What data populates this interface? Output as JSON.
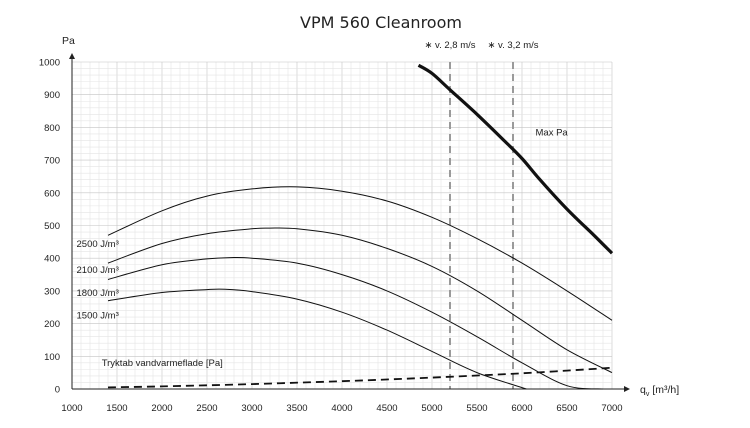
{
  "chart_data": {
    "type": "line",
    "title": "VPM 560 Cleanroom",
    "ylabel": "Pa",
    "xlabel": "q_v [m³/h]",
    "xlabel_main": "q",
    "xlabel_sub": "v",
    "xlabel_unit": "[m³/h]",
    "xlim": [
      1000,
      7000
    ],
    "ylim": [
      0,
      1000
    ],
    "x_ticks": [
      1000,
      1500,
      2000,
      2500,
      3000,
      3500,
      4000,
      4500,
      5000,
      5500,
      6000,
      6500,
      7000
    ],
    "y_ticks": [
      0,
      100,
      200,
      300,
      400,
      500,
      600,
      700,
      800,
      900,
      1000
    ],
    "grid": true,
    "velocity_markers": [
      {
        "label": "∗ v. 2,8 m/s",
        "x": 5200
      },
      {
        "label": "∗ v. 3,2 m/s",
        "x": 5900
      }
    ],
    "series": [
      {
        "name": "Max Pa",
        "style": "thick",
        "x": [
          4850,
          5000,
          5200,
          5500,
          5800,
          6000,
          6200,
          6500,
          6800,
          7000
        ],
        "y": [
          990,
          965,
          915,
          840,
          760,
          705,
          640,
          550,
          470,
          415
        ]
      },
      {
        "name": "2500 J/m³",
        "style": "thin",
        "x": [
          1400,
          2000,
          2500,
          3000,
          3500,
          4000,
          4500,
          5000,
          5500,
          6000,
          6500,
          7000
        ],
        "y": [
          470,
          545,
          590,
          612,
          618,
          605,
          575,
          525,
          460,
          385,
          300,
          210
        ]
      },
      {
        "name": "2100 J/m³",
        "style": "thin",
        "x": [
          1400,
          2000,
          2500,
          3000,
          3200,
          3500,
          4000,
          4500,
          5000,
          5500,
          6000,
          6500,
          7000
        ],
        "y": [
          385,
          445,
          475,
          490,
          492,
          490,
          470,
          430,
          375,
          300,
          210,
          120,
          50
        ]
      },
      {
        "name": "1800 J/m³",
        "style": "thin",
        "x": [
          1400,
          2000,
          2500,
          2800,
          3000,
          3500,
          4000,
          4500,
          5000,
          5500,
          6000,
          6500,
          6900
        ],
        "y": [
          335,
          380,
          398,
          402,
          400,
          385,
          350,
          300,
          235,
          160,
          80,
          10,
          0
        ]
      },
      {
        "name": "1500 J/m³",
        "style": "thin",
        "x": [
          1400,
          2000,
          2500,
          2700,
          3000,
          3500,
          4000,
          4500,
          5000,
          5500,
          6050
        ],
        "y": [
          270,
          295,
          304,
          305,
          298,
          275,
          235,
          180,
          115,
          50,
          0
        ]
      },
      {
        "name": "Tryktab vandvarmeflade [Pa]",
        "style": "dashed",
        "x": [
          1400,
          2000,
          3000,
          4000,
          5000,
          6000,
          7000
        ],
        "y": [
          5,
          8,
          15,
          24,
          35,
          48,
          65
        ]
      }
    ],
    "annotations": [
      {
        "text": "Max Pa",
        "x": 6150,
        "y": 775
      },
      {
        "text": "2500 J/m³",
        "x": 1050,
        "y": 435
      },
      {
        "text": "2100 J/m³",
        "x": 1050,
        "y": 355
      },
      {
        "text": "1800 J/m³",
        "x": 1050,
        "y": 285
      },
      {
        "text": "1500 J/m³",
        "x": 1050,
        "y": 215
      },
      {
        "text": "Tryktab vandvarmeflade [Pa]",
        "x": 1330,
        "y": 70
      }
    ]
  }
}
